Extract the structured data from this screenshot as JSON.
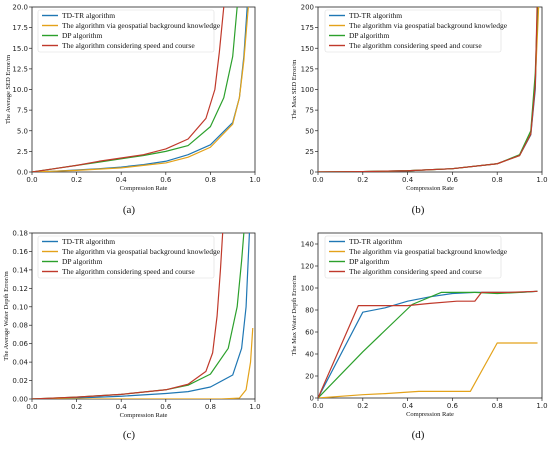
{
  "colors": {
    "td_tr": "#1f77b4",
    "geo": "#e3a21a",
    "dp": "#2ca02c",
    "speed_course": "#c0392b"
  },
  "chart_data": [
    {
      "type": "line",
      "panel_label": "(a)",
      "xlabel": "Compression Rate",
      "ylabel": "The Average SED Error/m",
      "xlim": [
        0,
        1.0
      ],
      "ylim": [
        0,
        20.0
      ],
      "xticks": [
        "0.0",
        "0.2",
        "0.4",
        "0.6",
        "0.8",
        "1.0"
      ],
      "yticks": [
        "0.0",
        "2.5",
        "5.0",
        "7.5",
        "10.0",
        "12.5",
        "15.0",
        "17.5",
        "20.0"
      ],
      "legend_position": "top-left",
      "series": [
        {
          "name": "TD-TR algorithm",
          "color_key": "td_tr",
          "points": [
            [
              0,
              0
            ],
            [
              0.1,
              0.1
            ],
            [
              0.2,
              0.25
            ],
            [
              0.3,
              0.4
            ],
            [
              0.4,
              0.6
            ],
            [
              0.5,
              0.9
            ],
            [
              0.6,
              1.3
            ],
            [
              0.7,
              2.1
            ],
            [
              0.8,
              3.3
            ],
            [
              0.9,
              6.0
            ],
            [
              0.93,
              9.0
            ],
            [
              0.95,
              14.0
            ],
            [
              0.965,
              20.0
            ]
          ]
        },
        {
          "name": "The algorithm via geospatial background knowledge",
          "color_key": "geo",
          "points": [
            [
              0,
              0
            ],
            [
              0.1,
              0.1
            ],
            [
              0.2,
              0.2
            ],
            [
              0.3,
              0.35
            ],
            [
              0.4,
              0.5
            ],
            [
              0.5,
              0.8
            ],
            [
              0.6,
              1.1
            ],
            [
              0.7,
              1.8
            ],
            [
              0.8,
              3.0
            ],
            [
              0.9,
              5.8
            ],
            [
              0.93,
              9.0
            ],
            [
              0.95,
              13.5
            ],
            [
              0.97,
              20.0
            ]
          ]
        },
        {
          "name": "DP algorithm",
          "color_key": "dp",
          "points": [
            [
              0,
              0
            ],
            [
              0.1,
              0.4
            ],
            [
              0.2,
              0.8
            ],
            [
              0.3,
              1.2
            ],
            [
              0.4,
              1.6
            ],
            [
              0.5,
              2.0
            ],
            [
              0.6,
              2.5
            ],
            [
              0.7,
              3.2
            ],
            [
              0.8,
              5.5
            ],
            [
              0.86,
              9.0
            ],
            [
              0.9,
              14.0
            ],
            [
              0.92,
              20.0
            ]
          ]
        },
        {
          "name": "The algorithm considering speed and course",
          "color_key": "speed_course",
          "points": [
            [
              0,
              0
            ],
            [
              0.1,
              0.4
            ],
            [
              0.2,
              0.8
            ],
            [
              0.3,
              1.3
            ],
            [
              0.4,
              1.7
            ],
            [
              0.5,
              2.1
            ],
            [
              0.6,
              2.8
            ],
            [
              0.7,
              4.0
            ],
            [
              0.78,
              6.5
            ],
            [
              0.82,
              10.0
            ],
            [
              0.84,
              14.5
            ],
            [
              0.86,
              20.0
            ]
          ]
        }
      ]
    },
    {
      "type": "line",
      "panel_label": "(b)",
      "xlabel": "Compression Rate",
      "ylabel": "The Max SED Error/m",
      "xlim": [
        0,
        1.0
      ],
      "ylim": [
        0,
        200
      ],
      "xticks": [
        "0.0",
        "0.2",
        "0.4",
        "0.6",
        "0.8",
        "1.0"
      ],
      "yticks": [
        "0",
        "25",
        "50",
        "75",
        "100",
        "125",
        "150",
        "175",
        "200"
      ],
      "legend_position": "top-right",
      "series": [
        {
          "name": "TD-TR algorithm",
          "color_key": "td_tr",
          "points": [
            [
              0,
              0
            ],
            [
              0.2,
              0.5
            ],
            [
              0.4,
              1.5
            ],
            [
              0.6,
              4.0
            ],
            [
              0.8,
              10.0
            ],
            [
              0.9,
              20.0
            ],
            [
              0.95,
              45.0
            ],
            [
              0.97,
              100.0
            ],
            [
              0.98,
              200.0
            ]
          ]
        },
        {
          "name": "The algorithm via geospatial background knowledge",
          "color_key": "geo",
          "points": [
            [
              0,
              0
            ],
            [
              0.2,
              0.5
            ],
            [
              0.4,
              1.5
            ],
            [
              0.6,
              4.0
            ],
            [
              0.8,
              10.0
            ],
            [
              0.9,
              20.0
            ],
            [
              0.95,
              48.0
            ],
            [
              0.97,
              110.0
            ],
            [
              0.985,
              200.0
            ]
          ]
        },
        {
          "name": "DP algorithm",
          "color_key": "dp",
          "points": [
            [
              0,
              0
            ],
            [
              0.2,
              0.5
            ],
            [
              0.4,
              1.5
            ],
            [
              0.6,
              4.0
            ],
            [
              0.8,
              10.0
            ],
            [
              0.9,
              21.0
            ],
            [
              0.95,
              50.0
            ],
            [
              0.97,
              120.0
            ],
            [
              0.98,
              200.0
            ]
          ]
        },
        {
          "name": "The algorithm considering speed and course",
          "color_key": "speed_course",
          "points": [
            [
              0,
              0
            ],
            [
              0.2,
              0.5
            ],
            [
              0.4,
              1.5
            ],
            [
              0.6,
              4.0
            ],
            [
              0.8,
              10.0
            ],
            [
              0.9,
              20.0
            ],
            [
              0.95,
              46.0
            ],
            [
              0.97,
              105.0
            ],
            [
              0.978,
              200.0
            ]
          ]
        }
      ]
    },
    {
      "type": "line",
      "panel_label": "(c)",
      "xlabel": "Compression Rate",
      "ylabel": "The Average Water Depth Error/m",
      "xlim": [
        0,
        1.0
      ],
      "ylim": [
        0,
        0.18
      ],
      "xticks": [
        "0.0",
        "0.2",
        "0.4",
        "0.6",
        "0.8",
        "1.0"
      ],
      "yticks": [
        "0.00",
        "0.02",
        "0.04",
        "0.06",
        "0.08",
        "0.10",
        "0.12",
        "0.14",
        "0.16",
        "0.18"
      ],
      "legend_position": "top-right",
      "series": [
        {
          "name": "TD-TR algorithm",
          "color_key": "td_tr",
          "points": [
            [
              0,
              0
            ],
            [
              0.2,
              0.001
            ],
            [
              0.4,
              0.003
            ],
            [
              0.6,
              0.006
            ],
            [
              0.7,
              0.008
            ],
            [
              0.8,
              0.013
            ],
            [
              0.9,
              0.026
            ],
            [
              0.94,
              0.055
            ],
            [
              0.96,
              0.1
            ],
            [
              0.975,
              0.18
            ]
          ]
        },
        {
          "name": "The algorithm via geospatial background knowledge",
          "color_key": "geo",
          "points": [
            [
              0,
              0
            ],
            [
              0.3,
              0
            ],
            [
              0.6,
              0
            ],
            [
              0.85,
              0
            ],
            [
              0.93,
              0.001
            ],
            [
              0.96,
              0.01
            ],
            [
              0.98,
              0.04
            ],
            [
              0.99,
              0.077
            ]
          ]
        },
        {
          "name": "DP algorithm",
          "color_key": "dp",
          "points": [
            [
              0,
              0
            ],
            [
              0.2,
              0.002
            ],
            [
              0.4,
              0.005
            ],
            [
              0.6,
              0.01
            ],
            [
              0.7,
              0.015
            ],
            [
              0.8,
              0.027
            ],
            [
              0.88,
              0.055
            ],
            [
              0.92,
              0.1
            ],
            [
              0.94,
              0.15
            ],
            [
              0.95,
              0.18
            ]
          ]
        },
        {
          "name": "The algorithm considering speed and course",
          "color_key": "speed_course",
          "points": [
            [
              0,
              0
            ],
            [
              0.2,
              0.002
            ],
            [
              0.4,
              0.005
            ],
            [
              0.6,
              0.01
            ],
            [
              0.7,
              0.016
            ],
            [
              0.78,
              0.03
            ],
            [
              0.81,
              0.05
            ],
            [
              0.83,
              0.09
            ],
            [
              0.845,
              0.14
            ],
            [
              0.855,
              0.18
            ]
          ]
        }
      ]
    },
    {
      "type": "line",
      "panel_label": "(d)",
      "xlabel": "Compression Rate",
      "ylabel": "The Max Water Depth Error/m",
      "xlim": [
        0,
        1.0
      ],
      "ylim": [
        0,
        150
      ],
      "xticks": [
        "0.0",
        "0.2",
        "0.4",
        "0.6",
        "0.8",
        "1.0"
      ],
      "yticks": [
        "0",
        "20",
        "40",
        "60",
        "80",
        "100",
        "120",
        "140"
      ],
      "legend_position": "top-right",
      "series": [
        {
          "name": "TD-TR algorithm",
          "color_key": "td_tr",
          "points": [
            [
              0,
              0
            ],
            [
              0.2,
              78
            ],
            [
              0.3,
              82
            ],
            [
              0.4,
              88
            ],
            [
              0.5,
              92
            ],
            [
              0.6,
              95
            ],
            [
              0.7,
              96
            ],
            [
              0.8,
              96
            ],
            [
              0.9,
              96
            ],
            [
              0.98,
              97
            ]
          ]
        },
        {
          "name": "The algorithm via geospatial background knowledge",
          "color_key": "geo",
          "points": [
            [
              0,
              0
            ],
            [
              0.2,
              3
            ],
            [
              0.3,
              4
            ],
            [
              0.45,
              6
            ],
            [
              0.55,
              6
            ],
            [
              0.68,
              6
            ],
            [
              0.8,
              50
            ],
            [
              0.9,
              50
            ],
            [
              0.98,
              50
            ]
          ]
        },
        {
          "name": "DP algorithm",
          "color_key": "dp",
          "points": [
            [
              0,
              0
            ],
            [
              0.2,
              42
            ],
            [
              0.42,
              85
            ],
            [
              0.55,
              96
            ],
            [
              0.7,
              96
            ],
            [
              0.8,
              95
            ],
            [
              0.9,
              96
            ],
            [
              0.98,
              97
            ]
          ]
        },
        {
          "name": "The algorithm considering speed and course",
          "color_key": "speed_course",
          "points": [
            [
              0,
              0
            ],
            [
              0.18,
              84
            ],
            [
              0.3,
              84
            ],
            [
              0.4,
              84
            ],
            [
              0.5,
              86
            ],
            [
              0.62,
              88
            ],
            [
              0.7,
              88
            ],
            [
              0.73,
              96
            ],
            [
              0.85,
              96
            ],
            [
              0.98,
              97
            ]
          ]
        }
      ]
    }
  ]
}
